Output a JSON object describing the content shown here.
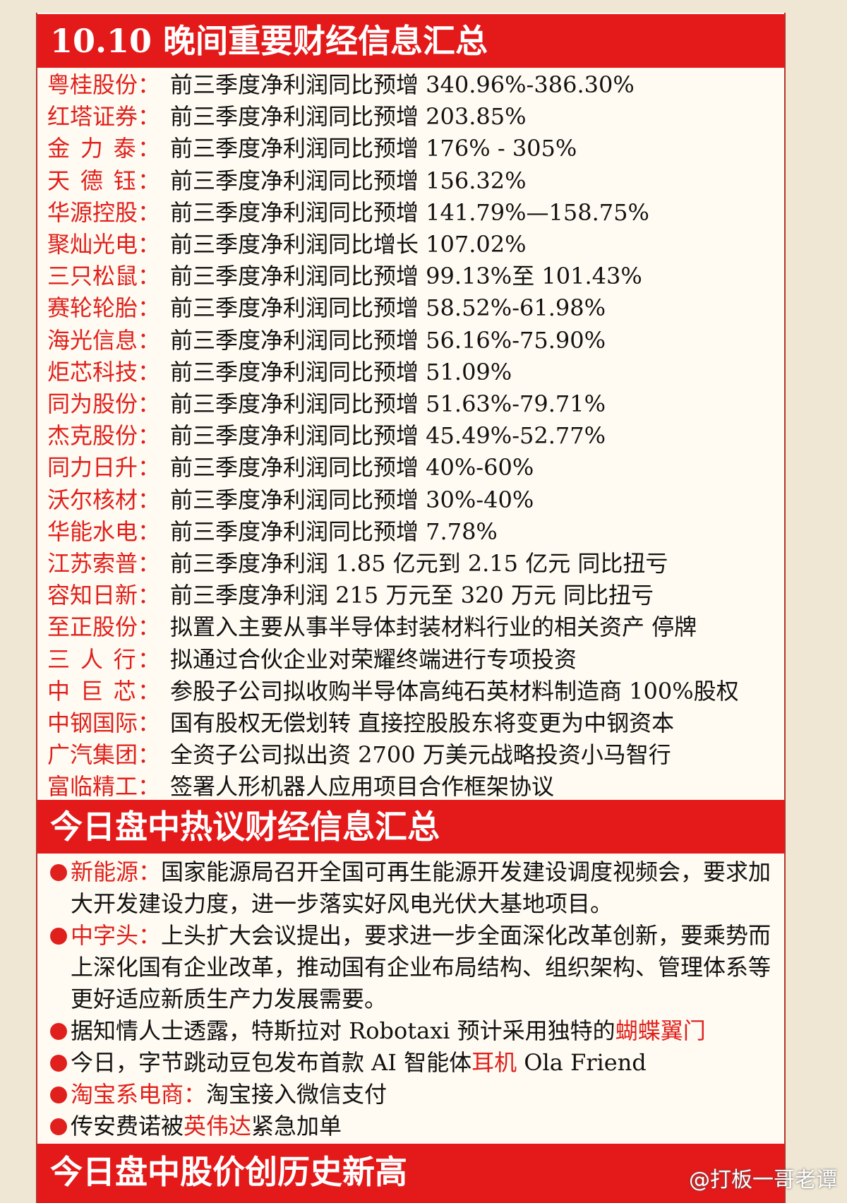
{
  "header": {
    "title": "10.10 晚间重要财经信息汇总"
  },
  "items": [
    {
      "name": "粤桂股份：",
      "text": "前三季度净利润同比预增 340.96%-386.30%"
    },
    {
      "name": "红塔证券：",
      "text": "前三季度净利润同比预增 203.85%"
    },
    {
      "name": "金 力 泰：",
      "text": "前三季度净利润同比预增 176% - 305%"
    },
    {
      "name": "天 德 钰：",
      "text": "前三季度净利润同比预增 156.32%"
    },
    {
      "name": "华源控股：",
      "text": "前三季度净利润同比预增 141.79%—158.75%"
    },
    {
      "name": "聚灿光电：",
      "text": "前三季度净利润同比增长 107.02%"
    },
    {
      "name": "三只松鼠：",
      "text": "前三季度净利润同比预增 99.13%至 101.43%"
    },
    {
      "name": "赛轮轮胎：",
      "text": "前三季度净利润同比预增 58.52%-61.98%"
    },
    {
      "name": "海光信息：",
      "text": "前三季度净利润同比预增 56.16%-75.90%"
    },
    {
      "name": "炬芯科技：",
      "text": "前三季度净利润同比预增 51.09%"
    },
    {
      "name": "同为股份：",
      "text": "前三季度净利润同比预增 51.63%-79.71%"
    },
    {
      "name": "杰克股份：",
      "text": "前三季度净利润同比预增 45.49%-52.77%"
    },
    {
      "name": "同力日升：",
      "text": "前三季度净利润同比预增 40%-60%"
    },
    {
      "name": "沃尔核材：",
      "text": "前三季度净利润同比预增 30%-40%"
    },
    {
      "name": "华能水电：",
      "text": "前三季度净利润同比预增 7.78%"
    },
    {
      "name": "江苏索普：",
      "text": "前三季度净利润 1.85 亿元到 2.15 亿元  同比扭亏"
    },
    {
      "name": "容知日新：",
      "text": "前三季度净利润 215 万元至 320 万元  同比扭亏"
    },
    {
      "name": "至正股份：",
      "text": "拟置入主要从事半导体封装材料行业的相关资产  停牌"
    },
    {
      "name": "三 人 行：",
      "text": "拟通过合伙企业对荣耀终端进行专项投资"
    },
    {
      "name": "中 巨 芯：",
      "text": "参股子公司拟收购半导体高纯石英材料制造商 100%股权"
    },
    {
      "name": "中钢国际：",
      "text": "国有股权无偿划转  直接控股股东将变更为中钢资本"
    },
    {
      "name": "广汽集团：",
      "text": "全资子公司拟出资 2700 万美元战略投资小马智行"
    },
    {
      "name": "富临精工：",
      "text": "签署人形机器人应用项目合作框架协议"
    }
  ],
  "section2": {
    "title": "今日盘中热议财经信息汇总",
    "bullets": [
      [
        {
          "text": "新能源：",
          "color": "#e0201c"
        },
        {
          "text": "国家能源局召开全国可再生能源开发建设调度视频会，要求加大开发建设力度，进一步落实好风电光伏大基地项目。",
          "color": "#111111"
        }
      ],
      [
        {
          "text": "中字头：",
          "color": "#e0201c"
        },
        {
          "text": "上头扩大会议提出，要求进一步全面深化改革创新，要乘势而上深化国有企业改革，推动国有企业布局结构、组织架构、管理体系等更好适应新质生产力发展需要。",
          "color": "#111111"
        }
      ],
      [
        {
          "text": "据知情人士透露，特斯拉对 Robotaxi 预计采用独特的",
          "color": "#111111"
        },
        {
          "text": "蝴蝶翼门",
          "color": "#e0201c"
        }
      ],
      [
        {
          "text": "今日，字节跳动豆包发布首款 AI 智能体",
          "color": "#111111"
        },
        {
          "text": "耳机",
          "color": "#e0201c"
        },
        {
          "text": " Ola Friend",
          "color": "#111111"
        }
      ],
      [
        {
          "text": "淘宝系电商：",
          "color": "#e0201c"
        },
        {
          "text": "淘宝接入微信支付",
          "color": "#111111"
        }
      ],
      [
        {
          "text": "传安费诺被",
          "color": "#111111"
        },
        {
          "text": "英伟达",
          "color": "#e0201c"
        },
        {
          "text": "紧急加单",
          "color": "#111111"
        }
      ]
    ]
  },
  "section3": {
    "title": "今日盘中股价创历史新高"
  },
  "watermark": "@打板一哥老谭"
}
